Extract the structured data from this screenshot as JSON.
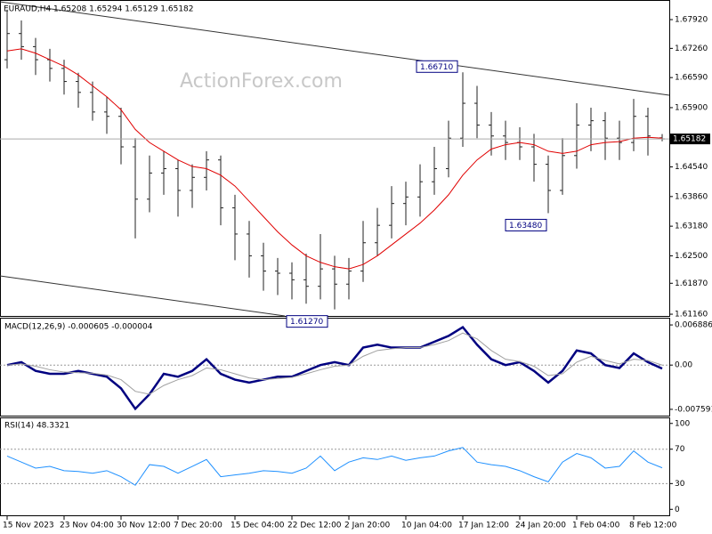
{
  "chart_data": [
    {
      "type": "ohlc",
      "title": "EURAUD,H4  1.65208 1.65294 1.65129 1.65182",
      "watermark": "ActionForex.com",
      "color": "#202020",
      "open": [
        1.67,
        1.676,
        1.673,
        1.67,
        1.668,
        1.665,
        1.6625,
        1.658,
        1.657,
        1.65,
        1.638,
        1.644,
        1.645,
        1.64,
        1.643,
        1.647,
        1.636,
        1.63,
        1.625,
        1.6215,
        1.621,
        1.6195,
        1.618,
        1.622,
        1.6185,
        1.6215,
        1.628,
        1.632,
        1.637,
        1.6385,
        1.642,
        1.645,
        1.652,
        1.66,
        1.655,
        1.6525,
        1.651,
        1.65,
        1.646,
        1.64,
        1.648,
        1.655,
        1.656,
        1.652,
        1.651,
        1.657,
        1.65208
      ],
      "high": [
        1.6815,
        1.679,
        1.675,
        1.6725,
        1.67,
        1.667,
        1.665,
        1.6615,
        1.659,
        1.652,
        1.648,
        1.649,
        1.647,
        1.646,
        1.649,
        1.648,
        1.639,
        1.633,
        1.628,
        1.6245,
        1.6235,
        1.6255,
        1.63,
        1.625,
        1.6245,
        1.633,
        1.636,
        1.641,
        1.642,
        1.646,
        1.65,
        1.656,
        1.6671,
        1.664,
        1.658,
        1.656,
        1.6545,
        1.653,
        1.648,
        1.652,
        1.66,
        1.659,
        1.658,
        1.656,
        1.661,
        1.659,
        1.65294
      ],
      "low": [
        1.668,
        1.67,
        1.6665,
        1.665,
        1.662,
        1.659,
        1.656,
        1.653,
        1.646,
        1.629,
        1.635,
        1.639,
        1.634,
        1.636,
        1.64,
        1.632,
        1.624,
        1.62,
        1.617,
        1.616,
        1.615,
        1.614,
        1.615,
        1.6127,
        1.615,
        1.619,
        1.625,
        1.629,
        1.632,
        1.634,
        1.639,
        1.643,
        1.65,
        1.652,
        1.648,
        1.647,
        1.647,
        1.642,
        1.6348,
        1.639,
        1.645,
        1.649,
        1.647,
        1.647,
        1.649,
        1.648,
        1.65129
      ],
      "close": [
        1.676,
        1.673,
        1.67,
        1.668,
        1.665,
        1.6625,
        1.658,
        1.657,
        1.65,
        1.638,
        1.644,
        1.645,
        1.64,
        1.643,
        1.647,
        1.636,
        1.63,
        1.625,
        1.6215,
        1.621,
        1.6195,
        1.618,
        1.622,
        1.6185,
        1.6215,
        1.628,
        1.632,
        1.637,
        1.6385,
        1.642,
        1.645,
        1.652,
        1.66,
        1.655,
        1.6525,
        1.651,
        1.65,
        1.646,
        1.64,
        1.648,
        1.655,
        1.656,
        1.652,
        1.651,
        1.657,
        1.6525,
        1.65182
      ],
      "ma": {
        "color": "#e00000",
        "values": [
          1.672,
          1.6725,
          1.6715,
          1.67,
          1.6685,
          1.6665,
          1.664,
          1.6615,
          1.6585,
          1.654,
          1.651,
          1.649,
          1.647,
          1.6455,
          1.645,
          1.6435,
          1.641,
          1.6375,
          1.634,
          1.6305,
          1.6275,
          1.625,
          1.6235,
          1.6225,
          1.622,
          1.623,
          1.625,
          1.6275,
          1.63,
          1.6325,
          1.6355,
          1.639,
          1.6435,
          1.647,
          1.6495,
          1.6505,
          1.651,
          1.6505,
          1.649,
          1.6485,
          1.649,
          1.6505,
          1.651,
          1.6512,
          1.652,
          1.6522,
          1.652
        ]
      },
      "annotations": [
        "1.66710",
        "1.63480",
        "1.61270"
      ],
      "ylim": [
        1.6112,
        1.6837
      ],
      "yticks": [
        {
          "value": 1.6792,
          "label": "1.67920"
        },
        {
          "value": 1.6726,
          "label": "1.67260"
        },
        {
          "value": 1.6659,
          "label": "1.66590"
        },
        {
          "value": 1.659,
          "label": "1.65900"
        },
        {
          "value": 1.6454,
          "label": "1.64540"
        },
        {
          "value": 1.6386,
          "label": "1.63860"
        },
        {
          "value": 1.6318,
          "label": "1.63180"
        },
        {
          "value": 1.625,
          "label": "1.62500"
        },
        {
          "value": 1.6187,
          "label": "1.61870"
        },
        {
          "value": 1.6116,
          "label": "1.61160"
        }
      ]
    },
    {
      "type": "macd",
      "title": "MACD(12,26,9) -0.000605 -0.000004",
      "zero_line": true,
      "series": [
        {
          "color": "#000080",
          "values": [
            0.0,
            0.0005,
            -0.001,
            -0.0015,
            -0.0015,
            -0.001,
            -0.0015,
            -0.002,
            -0.004,
            -0.0075,
            -0.005,
            -0.0015,
            -0.002,
            -0.001,
            0.001,
            -0.0015,
            -0.0025,
            -0.003,
            -0.0025,
            -0.002,
            -0.002,
            -0.001,
            0.0,
            0.0005,
            0.0,
            0.003,
            0.0035,
            0.003,
            0.003,
            0.003,
            0.004,
            0.005,
            0.0065,
            0.0035,
            0.001,
            0.0,
            0.0005,
            -0.001,
            -0.003,
            -0.001,
            0.0025,
            0.002,
            0.0,
            -0.0005,
            0.002,
            0.0005,
            -0.000605
          ]
        },
        {
          "color": "#a0a0a0",
          "values": [
            0.0,
            0.0002,
            -0.0002,
            -0.0008,
            -0.0012,
            -0.0013,
            -0.0014,
            -0.0017,
            -0.0025,
            -0.0045,
            -0.005,
            -0.0035,
            -0.0025,
            -0.0018,
            -0.0005,
            -0.0008,
            -0.0015,
            -0.0022,
            -0.0025,
            -0.0023,
            -0.0021,
            -0.0015,
            -0.0008,
            -0.0002,
            0.0,
            0.0015,
            0.0025,
            0.0028,
            0.003,
            0.003,
            0.0035,
            0.0042,
            0.0055,
            0.0045,
            0.0025,
            0.001,
            0.0006,
            -0.0002,
            -0.0018,
            -0.0015,
            0.0005,
            0.0015,
            0.0008,
            0.0002,
            0.001,
            0.0008,
            -4e-06
          ]
        }
      ],
      "ylim": [
        -0.00867,
        0.00812
      ],
      "yticks": [
        0.006886,
        {
          "value": 0,
          "label": "0.00"
        },
        -0.007591
      ]
    },
    {
      "type": "rsi",
      "title": "RSI(14) 48.3321",
      "color": "#1e90ff",
      "values": [
        62,
        55,
        48,
        50,
        45,
        44,
        42,
        45,
        38,
        28,
        52,
        50,
        42,
        50,
        58,
        38,
        40,
        42,
        45,
        44,
        42,
        48,
        62,
        45,
        55,
        60,
        58,
        62,
        57,
        60,
        62,
        68,
        72,
        55,
        52,
        50,
        45,
        38,
        32,
        55,
        65,
        60,
        48,
        50,
        68,
        55,
        48.3321
      ],
      "levels": [
        70,
        30
      ],
      "ylim": [
        -8,
        107
      ],
      "yticks": [
        100,
        70,
        30,
        0
      ],
      "categories": [
        "15 Nov 2023",
        null,
        null,
        null,
        "23 Nov 04:00",
        null,
        null,
        null,
        "30 Nov 12:00",
        null,
        null,
        null,
        "7 Dec 20:00",
        null,
        null,
        null,
        "15 Dec 04:00",
        null,
        null,
        null,
        "22 Dec 12:00",
        null,
        null,
        null,
        "2 Jan 20:00",
        null,
        null,
        null,
        "10 Jan 04:00",
        null,
        null,
        null,
        "17 Jan 12:00",
        null,
        null,
        null,
        "24 Jan 20:00",
        null,
        null,
        null,
        "1 Feb 04:00",
        null,
        null,
        null,
        "8 Feb 12:00",
        null,
        null
      ]
    }
  ]
}
